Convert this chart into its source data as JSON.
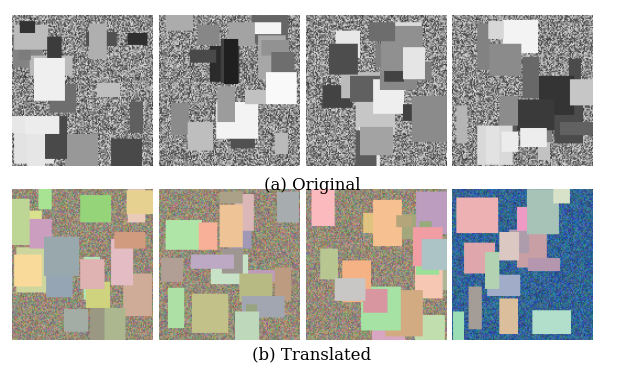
{
  "caption_a": "(a) Original",
  "caption_b": "(b) Translated",
  "caption_fontsize": 12,
  "caption_style": "italic",
  "fig_width": 6.24,
  "fig_height": 3.7,
  "bg_color": "#ffffff",
  "border_color": "#000000",
  "row1_colors": [
    [
      "#888888",
      "#555555",
      "#aaaaaa",
      "#cccccc",
      "#999999",
      "#444444"
    ],
    [
      "#aaaaaa",
      "#888888",
      "#cccccc",
      "#777777",
      "#bbbbbb",
      "#555555"
    ],
    [
      "#bbbbbb",
      "#999999",
      "#dddddd",
      "#888888",
      "#aaaaaa",
      "#666666"
    ],
    [
      "#cccccc",
      "#aaaaaa",
      "#eeeeee",
      "#999999",
      "#bbbbbb",
      "#777777"
    ]
  ],
  "row2_colors": [
    [
      "#8aaa77",
      "#5577aa",
      "#aa8855",
      "#99aa77",
      "#bbaa88",
      "#557799"
    ],
    [
      "#99aa88",
      "#667799",
      "#bb9966",
      "#88aa66",
      "#ccaa77",
      "#447788"
    ],
    [
      "#aaaa99",
      "#8899aa",
      "#ccbb88",
      "#99aa88",
      "#ccbbaa",
      "#778899"
    ],
    [
      "#3355aa",
      "#8899bb",
      "#bbccaa",
      "#aabb99",
      "#ddccbb",
      "#557788"
    ]
  ],
  "n_cols": 4,
  "n_rows": 2
}
